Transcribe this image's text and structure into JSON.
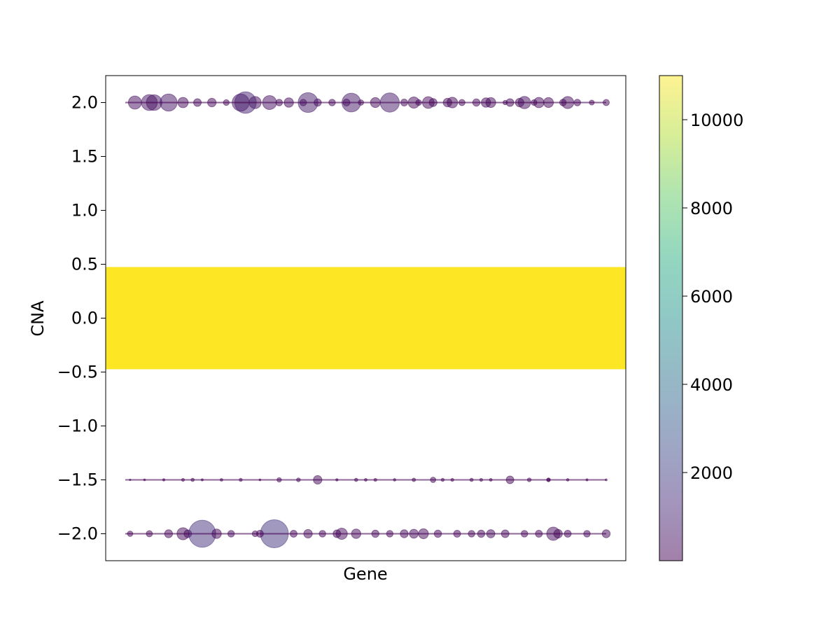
{
  "chart_data": {
    "type": "scatter",
    "title": "",
    "xlabel": "Gene",
    "ylabel": "CNA",
    "xticks": [],
    "ylim": [
      -2.25,
      2.25
    ],
    "yticks": [
      "−2.0",
      "−1.5",
      "−1.0",
      "−0.5",
      "0.0",
      "0.5",
      "1.0",
      "1.5",
      "2.0"
    ],
    "ytick_values": [
      -2.0,
      -1.5,
      -1.0,
      -0.5,
      0.0,
      0.5,
      1.0,
      1.5,
      2.0
    ],
    "grid": false,
    "colorbar": {
      "colormap": "viridis",
      "range": [
        1,
        11000
      ],
      "ticks": [
        "2000",
        "4000",
        "6000",
        "8000",
        "10000"
      ],
      "tick_values": [
        2000,
        4000,
        6000,
        8000,
        10000
      ]
    },
    "marker_alpha": 0.5,
    "size_encodes": "count",
    "color_encodes": "count",
    "series": [
      {
        "y": 0.0,
        "x_range": [
          0.0,
          1.0
        ],
        "count_range": [
          10000,
          11000
        ],
        "note_points": "dense band of very large markers"
      },
      {
        "y": 2.0,
        "points": [
          [
            0.02,
            350
          ],
          [
            0.06,
            500
          ],
          [
            0.09,
            600
          ],
          [
            0.12,
            220
          ],
          [
            0.15,
            120
          ],
          [
            0.18,
            150
          ],
          [
            0.21,
            70
          ],
          [
            0.24,
            600
          ],
          [
            0.27,
            300
          ],
          [
            0.3,
            400
          ],
          [
            0.32,
            90
          ],
          [
            0.34,
            180
          ],
          [
            0.37,
            90
          ],
          [
            0.4,
            110
          ],
          [
            0.43,
            90
          ],
          [
            0.46,
            100
          ],
          [
            0.49,
            60
          ],
          [
            0.52,
            200
          ],
          [
            0.55,
            750
          ],
          [
            0.58,
            100
          ],
          [
            0.61,
            70
          ],
          [
            0.64,
            130
          ],
          [
            0.67,
            150
          ],
          [
            0.7,
            80
          ],
          [
            0.73,
            110
          ],
          [
            0.76,
            200
          ],
          [
            0.79,
            40
          ],
          [
            0.82,
            150
          ],
          [
            0.85,
            70
          ],
          [
            0.88,
            200
          ],
          [
            0.91,
            90
          ],
          [
            0.94,
            90
          ],
          [
            0.97,
            50
          ],
          [
            1.0,
            80
          ],
          [
            0.25,
            950
          ],
          [
            0.38,
            800
          ],
          [
            0.47,
            720
          ],
          [
            0.05,
            520
          ],
          [
            0.6,
            260
          ],
          [
            0.68,
            230
          ],
          [
            0.86,
            220
          ],
          [
            0.92,
            300
          ],
          [
            0.75,
            180
          ],
          [
            0.8,
            120
          ],
          [
            0.83,
            310
          ],
          [
            0.63,
            280
          ]
        ]
      },
      {
        "y": -1.5,
        "points": [
          [
            0.01,
            5
          ],
          [
            0.04,
            8
          ],
          [
            0.08,
            12
          ],
          [
            0.12,
            18
          ],
          [
            0.16,
            10
          ],
          [
            0.2,
            15
          ],
          [
            0.24,
            20
          ],
          [
            0.28,
            8
          ],
          [
            0.32,
            40
          ],
          [
            0.36,
            30
          ],
          [
            0.4,
            150
          ],
          [
            0.44,
            12
          ],
          [
            0.48,
            22
          ],
          [
            0.52,
            18
          ],
          [
            0.56,
            14
          ],
          [
            0.6,
            25
          ],
          [
            0.64,
            60
          ],
          [
            0.68,
            18
          ],
          [
            0.72,
            22
          ],
          [
            0.76,
            16
          ],
          [
            0.8,
            120
          ],
          [
            0.84,
            30
          ],
          [
            0.88,
            20
          ],
          [
            0.92,
            14
          ],
          [
            0.96,
            10
          ],
          [
            1.0,
            8
          ],
          [
            0.14,
            22
          ],
          [
            0.5,
            16
          ],
          [
            0.66,
            20
          ],
          [
            0.74,
            18
          ],
          [
            0.88,
            30
          ]
        ]
      },
      {
        "y": -2.0,
        "points": [
          [
            0.01,
            60
          ],
          [
            0.05,
            80
          ],
          [
            0.09,
            130
          ],
          [
            0.13,
            120
          ],
          [
            0.16,
            1500
          ],
          [
            0.19,
            180
          ],
          [
            0.22,
            90
          ],
          [
            0.27,
            70
          ],
          [
            0.31,
            1600
          ],
          [
            0.35,
            100
          ],
          [
            0.38,
            150
          ],
          [
            0.41,
            90
          ],
          [
            0.45,
            260
          ],
          [
            0.48,
            180
          ],
          [
            0.52,
            110
          ],
          [
            0.55,
            90
          ],
          [
            0.58,
            130
          ],
          [
            0.62,
            200
          ],
          [
            0.65,
            110
          ],
          [
            0.69,
            100
          ],
          [
            0.72,
            90
          ],
          [
            0.76,
            140
          ],
          [
            0.79,
            120
          ],
          [
            0.83,
            90
          ],
          [
            0.86,
            100
          ],
          [
            0.89,
            360
          ],
          [
            0.92,
            100
          ],
          [
            0.96,
            90
          ],
          [
            1.0,
            130
          ],
          [
            0.12,
            300
          ],
          [
            0.28,
            100
          ],
          [
            0.44,
            120
          ],
          [
            0.6,
            160
          ],
          [
            0.74,
            110
          ],
          [
            0.9,
            150
          ]
        ]
      }
    ]
  }
}
